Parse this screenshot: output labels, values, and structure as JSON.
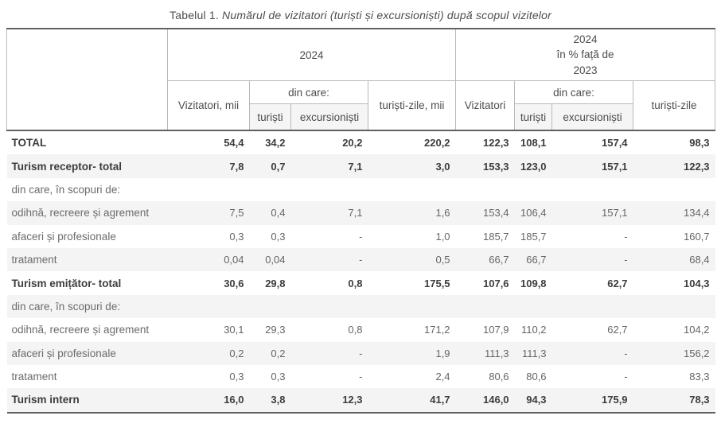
{
  "title": {
    "prefix": "Tabelul 1.",
    "italic": " Numărul de vizitatori (turiști și excursioniști) după scopul vizitelor"
  },
  "colors": {
    "heavy_border": "#606060",
    "light_border": "#b9b9b9",
    "row_stripe": "#f4f4f4",
    "header_shade": "#f5f5f5",
    "text_bold": "#3d3d3d",
    "text_regular": "#666666"
  },
  "table": {
    "group1": "2024",
    "group2": "2024\nîn % față de\n2023",
    "columns": {
      "vizitatori_mii": "Vizitatori, mii",
      "din_care_1": "din care:",
      "turisti_1": "turiști",
      "excursionisti_1": "excursioniști",
      "turisti_zile_mii": "turiști-zile, mii",
      "vizitatori_pct": "Vizitatori",
      "din_care_2": "din care:",
      "turisti_2": "turiști",
      "excursionisti_2": "excursioniști",
      "turisti_zile_pct": "turiști-zile"
    },
    "rows": [
      {
        "label": "TOTAL",
        "bold": true,
        "values": [
          "54,4",
          "34,2",
          "20,2",
          "220,2",
          "122,3",
          "108,1",
          "157,4",
          "98,3"
        ]
      },
      {
        "label": "Turism receptor- total",
        "bold": true,
        "values": [
          "7,8",
          "0,7",
          "7,1",
          "3,0",
          "153,3",
          "123,0",
          "157,1",
          "122,3"
        ]
      },
      {
        "label": "din care, în scopuri de:",
        "bold": false,
        "values": [
          "",
          "",
          "",
          "",
          "",
          "",
          "",
          ""
        ]
      },
      {
        "label": "odihnă, recreere și agrement",
        "bold": false,
        "values": [
          "7,5",
          "0,4",
          "7,1",
          "1,6",
          "153,4",
          "106,4",
          "157,1",
          "134,4"
        ]
      },
      {
        "label": "afaceri și profesionale",
        "bold": false,
        "values": [
          "0,3",
          "0,3",
          "-",
          "1,0",
          "185,7",
          "185,7",
          "-",
          "160,7"
        ]
      },
      {
        "label": "tratament",
        "bold": false,
        "values": [
          "0,04",
          "0,04",
          "-",
          "0,5",
          "66,7",
          "66,7",
          "-",
          "68,4"
        ]
      },
      {
        "label": "Turism emițător- total",
        "bold": true,
        "values": [
          "30,6",
          "29,8",
          "0,8",
          "175,5",
          "107,6",
          "109,8",
          "62,7",
          "104,3"
        ]
      },
      {
        "label": "din care, în scopuri de:",
        "bold": false,
        "values": [
          "",
          "",
          "",
          "",
          "",
          "",
          "",
          ""
        ]
      },
      {
        "label": "odihnă, recreere și agrement",
        "bold": false,
        "values": [
          "30,1",
          "29,3",
          "0,8",
          "171,2",
          "107,9",
          "110,2",
          "62,7",
          "104,2"
        ]
      },
      {
        "label": "afaceri și profesionale",
        "bold": false,
        "values": [
          "0,2",
          "0,2",
          "-",
          "1,9",
          "111,3",
          "111,3",
          "-",
          "156,2"
        ]
      },
      {
        "label": "tratament",
        "bold": false,
        "values": [
          "0,3",
          "0,3",
          "-",
          "2,4",
          "80,6",
          "80,6",
          "-",
          "83,3"
        ]
      },
      {
        "label": "Turism intern",
        "bold": true,
        "values": [
          "16,0",
          "3,8",
          "12,3",
          "41,7",
          "146,0",
          "94,3",
          "175,9",
          "78,3"
        ]
      }
    ]
  }
}
